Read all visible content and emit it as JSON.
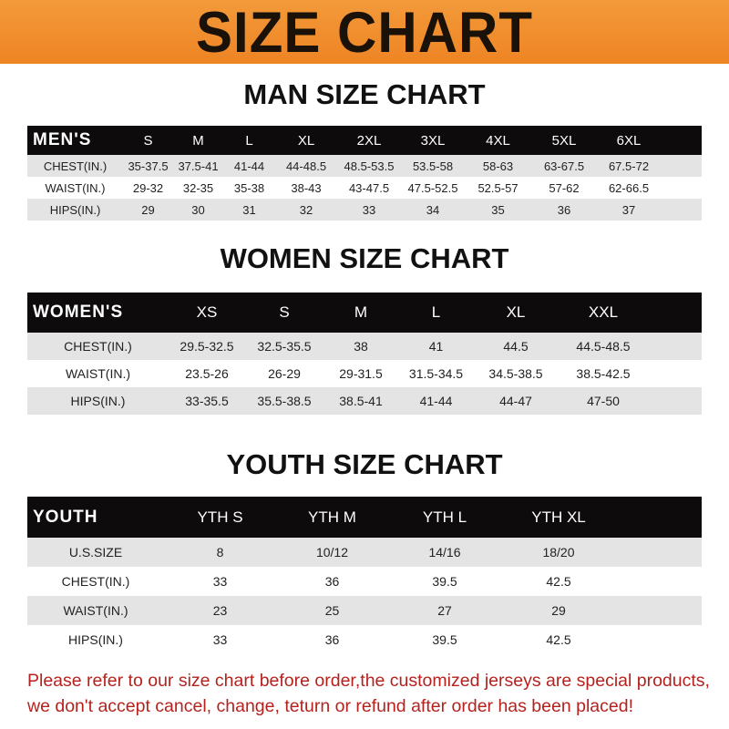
{
  "title": "SIZE CHART",
  "men": {
    "title": "MAN SIZE CHART",
    "header": [
      "MEN'S",
      "S",
      "M",
      "L",
      "XL",
      "2XL",
      "3XL",
      "4XL",
      "5XL",
      "6XL"
    ],
    "rows": [
      [
        "CHEST(IN.)",
        "35-37.5",
        "37.5-41",
        "41-44",
        "44-48.5",
        "48.5-53.5",
        "53.5-58",
        "58-63",
        "63-67.5",
        "67.5-72"
      ],
      [
        "WAIST(IN.)",
        "29-32",
        "32-35",
        "35-38",
        "38-43",
        "43-47.5",
        "47.5-52.5",
        "52.5-57",
        "57-62",
        "62-66.5"
      ],
      [
        "HIPS(IN.)",
        "29",
        "30",
        "31",
        "32",
        "33",
        "34",
        "35",
        "36",
        "37"
      ]
    ]
  },
  "women": {
    "title": "WOMEN SIZE CHART",
    "header": [
      "WOMEN'S",
      "XS",
      "S",
      "M",
      "L",
      "XL",
      "XXL"
    ],
    "rows": [
      [
        "CHEST(IN.)",
        "29.5-32.5",
        "32.5-35.5",
        "38",
        "41",
        "44.5",
        "44.5-48.5"
      ],
      [
        "WAIST(IN.)",
        "23.5-26",
        "26-29",
        "29-31.5",
        "31.5-34.5",
        "34.5-38.5",
        "38.5-42.5"
      ],
      [
        "HIPS(IN.)",
        "33-35.5",
        "35.5-38.5",
        "38.5-41",
        "41-44",
        "44-47",
        "47-50"
      ]
    ]
  },
  "youth": {
    "title": "YOUTH SIZE CHART",
    "header": [
      "YOUTH",
      "YTH S",
      "YTH M",
      "YTH L",
      "YTH XL"
    ],
    "rows": [
      [
        "U.S.SIZE",
        "8",
        "10/12",
        "14/16",
        "18/20"
      ],
      [
        "CHEST(IN.)",
        "33",
        "36",
        "39.5",
        "42.5"
      ],
      [
        "WAIST(IN.)",
        "23",
        "25",
        "27",
        "29"
      ],
      [
        "HIPS(IN.)",
        "33",
        "36",
        "39.5",
        "42.5"
      ]
    ]
  },
  "note": [
    "Please refer to our size chart before order,the customized jerseys are special products,",
    "we don't accept cancel, change, teturn or refund after order has been placed!"
  ]
}
